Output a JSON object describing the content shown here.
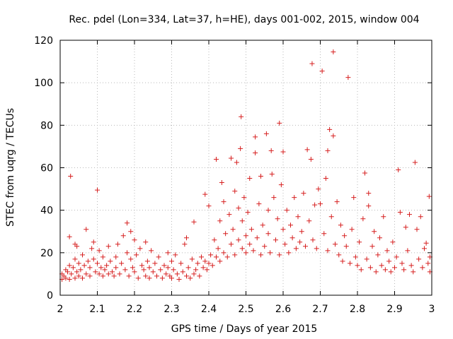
{
  "chart_data": {
    "type": "scatter",
    "title": "Rec. pdel (Lon=334, Lat=37, h=HE), days 001-002, 2015, window 004",
    "xlabel": "GPS time / Days of year 2015",
    "ylabel": "STEC from uqrg / TECUs",
    "xlim": [
      2,
      3
    ],
    "ylim": [
      0,
      120
    ],
    "x_ticks": [
      "2",
      "2.1",
      "2.2",
      "2.3",
      "2.4",
      "2.5",
      "2.6",
      "2.7",
      "2.8",
      "2.9",
      "3"
    ],
    "y_ticks": [
      "0",
      "20",
      "40",
      "60",
      "80",
      "100",
      "120"
    ],
    "grid": true,
    "marker": "+",
    "marker_color": "#d61f1f",
    "series": [
      {
        "name": "STEC",
        "points": [
          [
            2.005,
            7.5
          ],
          [
            2.005,
            10
          ],
          [
            2.01,
            9
          ],
          [
            2.015,
            8
          ],
          [
            2.015,
            12
          ],
          [
            2.02,
            11
          ],
          [
            2.025,
            7.5
          ],
          [
            2.025,
            14
          ],
          [
            2.025,
            27.5
          ],
          [
            2.028,
            56
          ],
          [
            2.03,
            10
          ],
          [
            2.035,
            13
          ],
          [
            2.04,
            8
          ],
          [
            2.04,
            17
          ],
          [
            2.04,
            24
          ],
          [
            2.045,
            11
          ],
          [
            2.045,
            23
          ],
          [
            2.05,
            9
          ],
          [
            2.05,
            15
          ],
          [
            2.055,
            12
          ],
          [
            2.06,
            8
          ],
          [
            2.06,
            19
          ],
          [
            2.065,
            14
          ],
          [
            2.07,
            31
          ],
          [
            2.07,
            10
          ],
          [
            2.075,
            16
          ],
          [
            2.08,
            9
          ],
          [
            2.08,
            13
          ],
          [
            2.085,
            22
          ],
          [
            2.09,
            25
          ],
          [
            2.09,
            17
          ],
          [
            2.095,
            11
          ],
          [
            2.1,
            15
          ],
          [
            2.1,
            49.5
          ],
          [
            2.105,
            10
          ],
          [
            2.105,
            21
          ],
          [
            2.11,
            13
          ],
          [
            2.115,
            9
          ],
          [
            2.115,
            18
          ],
          [
            2.12,
            12
          ],
          [
            2.125,
            14
          ],
          [
            2.13,
            10
          ],
          [
            2.13,
            23
          ],
          [
            2.135,
            16
          ],
          [
            2.14,
            11
          ],
          [
            2.145,
            9
          ],
          [
            2.15,
            13
          ],
          [
            2.15,
            18
          ],
          [
            2.155,
            24
          ],
          [
            2.16,
            10
          ],
          [
            2.165,
            15
          ],
          [
            2.17,
            28
          ],
          [
            2.175,
            12
          ],
          [
            2.18,
            34
          ],
          [
            2.18,
            20
          ],
          [
            2.185,
            9
          ],
          [
            2.19,
            30
          ],
          [
            2.19,
            17
          ],
          [
            2.195,
            13
          ],
          [
            2.2,
            26
          ],
          [
            2.2,
            11
          ],
          [
            2.205,
            19
          ],
          [
            2.21,
            8
          ],
          [
            2.215,
            22
          ],
          [
            2.22,
            14
          ],
          [
            2.225,
            12
          ],
          [
            2.23,
            9
          ],
          [
            2.23,
            25
          ],
          [
            2.235,
            16
          ],
          [
            2.24,
            13
          ],
          [
            2.24,
            8
          ],
          [
            2.245,
            21
          ],
          [
            2.25,
            11
          ],
          [
            2.255,
            15
          ],
          [
            2.26,
            9
          ],
          [
            2.265,
            18
          ],
          [
            2.27,
            12
          ],
          [
            2.275,
            8
          ],
          [
            2.28,
            14
          ],
          [
            2.285,
            10
          ],
          [
            2.29,
            20
          ],
          [
            2.29,
            13
          ],
          [
            2.295,
            9
          ],
          [
            2.3,
            16
          ],
          [
            2.3,
            8
          ],
          [
            2.305,
            12
          ],
          [
            2.31,
            19
          ],
          [
            2.315,
            10
          ],
          [
            2.32,
            7.5
          ],
          [
            2.325,
            15
          ],
          [
            2.33,
            11
          ],
          [
            2.335,
            24
          ],
          [
            2.34,
            9
          ],
          [
            2.34,
            27
          ],
          [
            2.345,
            13
          ],
          [
            2.35,
            8
          ],
          [
            2.355,
            17
          ],
          [
            2.36,
            10
          ],
          [
            2.36,
            34.5
          ],
          [
            2.365,
            12
          ],
          [
            2.37,
            15
          ],
          [
            2.375,
            9
          ],
          [
            2.38,
            18
          ],
          [
            2.385,
            13
          ],
          [
            2.39,
            16
          ],
          [
            2.39,
            47.5
          ],
          [
            2.395,
            12
          ],
          [
            2.4,
            15
          ],
          [
            2.4,
            42
          ],
          [
            2.405,
            19
          ],
          [
            2.41,
            14
          ],
          [
            2.415,
            26
          ],
          [
            2.42,
            18
          ],
          [
            2.42,
            64
          ],
          [
            2.425,
            22
          ],
          [
            2.43,
            16
          ],
          [
            2.43,
            35
          ],
          [
            2.435,
            53
          ],
          [
            2.44,
            20
          ],
          [
            2.44,
            44
          ],
          [
            2.445,
            29
          ],
          [
            2.45,
            18
          ],
          [
            2.455,
            38
          ],
          [
            2.46,
            64.5
          ],
          [
            2.46,
            24
          ],
          [
            2.465,
            31
          ],
          [
            2.47,
            19
          ],
          [
            2.47,
            49
          ],
          [
            2.475,
            62.5
          ],
          [
            2.48,
            26
          ],
          [
            2.48,
            41
          ],
          [
            2.485,
            69
          ],
          [
            2.487,
            84
          ],
          [
            2.49,
            22
          ],
          [
            2.49,
            35
          ],
          [
            2.495,
            46
          ],
          [
            2.5,
            28
          ],
          [
            2.5,
            20
          ],
          [
            2.505,
            39
          ],
          [
            2.51,
            24
          ],
          [
            2.51,
            55
          ],
          [
            2.515,
            31
          ],
          [
            2.52,
            21
          ],
          [
            2.525,
            67
          ],
          [
            2.525,
            74.5
          ],
          [
            2.53,
            27
          ],
          [
            2.535,
            43
          ],
          [
            2.54,
            19
          ],
          [
            2.54,
            56
          ],
          [
            2.545,
            33
          ],
          [
            2.55,
            23
          ],
          [
            2.555,
            76
          ],
          [
            2.56,
            40
          ],
          [
            2.56,
            29
          ],
          [
            2.565,
            20
          ],
          [
            2.568,
            68
          ],
          [
            2.57,
            57
          ],
          [
            2.575,
            46
          ],
          [
            2.58,
            26
          ],
          [
            2.585,
            36
          ],
          [
            2.59,
            81
          ],
          [
            2.59,
            19
          ],
          [
            2.595,
            52
          ],
          [
            2.6,
            31
          ],
          [
            2.6,
            67.5
          ],
          [
            2.605,
            24
          ],
          [
            2.61,
            40
          ],
          [
            2.615,
            20
          ],
          [
            2.62,
            33
          ],
          [
            2.625,
            27
          ],
          [
            2.63,
            46
          ],
          [
            2.635,
            22
          ],
          [
            2.64,
            37
          ],
          [
            2.645,
            25
          ],
          [
            2.65,
            30
          ],
          [
            2.655,
            48
          ],
          [
            2.66,
            23
          ],
          [
            2.665,
            68.5
          ],
          [
            2.67,
            35
          ],
          [
            2.675,
            64
          ],
          [
            2.678,
            109
          ],
          [
            2.68,
            26
          ],
          [
            2.685,
            42.5
          ],
          [
            2.69,
            22
          ],
          [
            2.695,
            50
          ],
          [
            2.7,
            43
          ],
          [
            2.705,
            105.5
          ],
          [
            2.71,
            29
          ],
          [
            2.715,
            55
          ],
          [
            2.72,
            21
          ],
          [
            2.72,
            68
          ],
          [
            2.725,
            78
          ],
          [
            2.73,
            37
          ],
          [
            2.735,
            114.5
          ],
          [
            2.735,
            75
          ],
          [
            2.74,
            24
          ],
          [
            2.745,
            44
          ],
          [
            2.75,
            19
          ],
          [
            2.755,
            33
          ],
          [
            2.76,
            16
          ],
          [
            2.765,
            28
          ],
          [
            2.77,
            23
          ],
          [
            2.775,
            102.5
          ],
          [
            2.78,
            15
          ],
          [
            2.785,
            31
          ],
          [
            2.79,
            46
          ],
          [
            2.795,
            18
          ],
          [
            2.8,
            14
          ],
          [
            2.805,
            25
          ],
          [
            2.81,
            12
          ],
          [
            2.815,
            36
          ],
          [
            2.82,
            57.5
          ],
          [
            2.825,
            17
          ],
          [
            2.83,
            48
          ],
          [
            2.83,
            42
          ],
          [
            2.835,
            13
          ],
          [
            2.84,
            23
          ],
          [
            2.845,
            30
          ],
          [
            2.85,
            11
          ],
          [
            2.855,
            19
          ],
          [
            2.86,
            27
          ],
          [
            2.865,
            14
          ],
          [
            2.87,
            37
          ],
          [
            2.875,
            12
          ],
          [
            2.88,
            21
          ],
          [
            2.885,
            16
          ],
          [
            2.89,
            11
          ],
          [
            2.895,
            25
          ],
          [
            2.9,
            13
          ],
          [
            2.905,
            18
          ],
          [
            2.91,
            59
          ],
          [
            2.915,
            39
          ],
          [
            2.92,
            15
          ],
          [
            2.925,
            12
          ],
          [
            2.93,
            32
          ],
          [
            2.935,
            21
          ],
          [
            2.94,
            38
          ],
          [
            2.945,
            14
          ],
          [
            2.95,
            11
          ],
          [
            2.955,
            62.5
          ],
          [
            2.96,
            31
          ],
          [
            2.965,
            17
          ],
          [
            2.97,
            37
          ],
          [
            2.975,
            13
          ],
          [
            2.98,
            22
          ],
          [
            2.985,
            24.5
          ],
          [
            2.99,
            15
          ],
          [
            2.993,
            46.5
          ],
          [
            2.995,
            11
          ],
          [
            2.995,
            18
          ]
        ]
      }
    ]
  }
}
